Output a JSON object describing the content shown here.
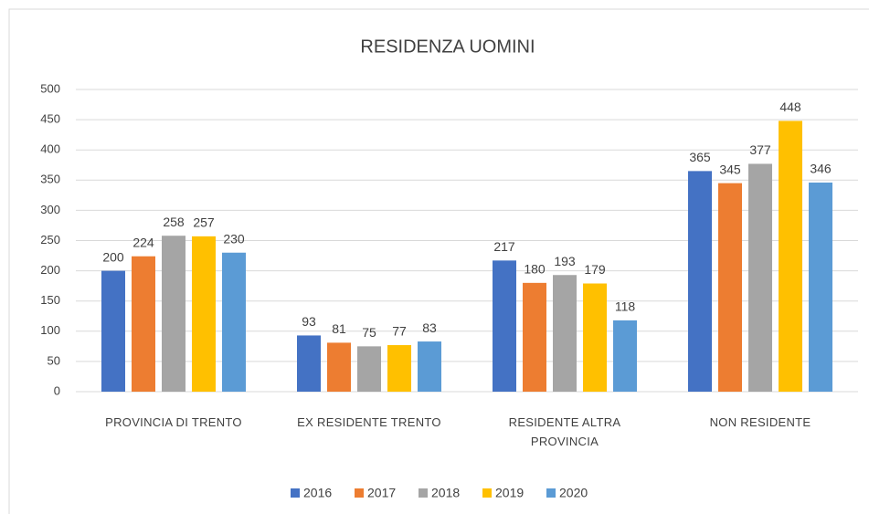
{
  "chart_data": {
    "type": "bar",
    "title": "RESIDENZA UOMINI",
    "categories": [
      "PROVINCIA DI TRENTO",
      "EX RESIDENTE TRENTO",
      "RESIDENTE ALTRA PROVINCIA",
      "NON RESIDENTE"
    ],
    "series": [
      {
        "name": "2016",
        "color": "#4472c4",
        "values": [
          200,
          93,
          217,
          365
        ]
      },
      {
        "name": "2017",
        "color": "#ed7d31",
        "values": [
          224,
          81,
          180,
          345
        ]
      },
      {
        "name": "2018",
        "color": "#a5a5a5",
        "values": [
          258,
          75,
          193,
          377
        ]
      },
      {
        "name": "2019",
        "color": "#ffc000",
        "values": [
          257,
          77,
          179,
          448
        ]
      },
      {
        "name": "2020",
        "color": "#5b9bd5",
        "values": [
          230,
          83,
          118,
          346
        ]
      }
    ],
    "ylim": [
      0,
      500
    ],
    "yticks": [
      0,
      50,
      100,
      150,
      200,
      250,
      300,
      350,
      400,
      450,
      500
    ],
    "grid": true,
    "legend": "bottom",
    "data_labels": true
  }
}
